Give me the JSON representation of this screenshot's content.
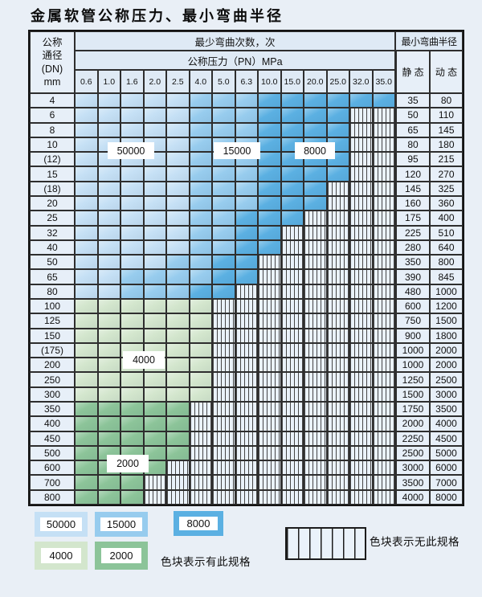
{
  "title": "金属软管公称压力、最小弯曲半径",
  "colors": {
    "page-bg": "#e9eff6",
    "grid-line": "#2e2e2e",
    "header-bg": "#dfeaf5",
    "label-bg": "#e7eff8",
    "hatch-bg": "#eaf2fa",
    "blue-50000": "#c5e0f5",
    "blue-15000": "#97ccee",
    "blue-8000": "#5bb0e2",
    "green-4000": "#d3e6cd",
    "green-2000": "#8cc499"
  },
  "header": {
    "dn_lines": [
      "公称",
      "通径",
      "(DN)",
      "mm"
    ],
    "bend_times_label": "最少弯曲次数，次",
    "pressure_label": "公称压力（PN）MPa",
    "pressure_values": [
      "0.6",
      "1.0",
      "1.6",
      "2.0",
      "2.5",
      "4.0",
      "5.0",
      "6.3",
      "10.0",
      "15.0",
      "20.0",
      "25.0",
      "32.0",
      "35.0"
    ],
    "radius_label": "最小弯曲半径",
    "static_label": "静 态",
    "dynamic_label": "动 态"
  },
  "shade_codes": {
    "L": "50000",
    "M": "15000",
    "D": "8000",
    "G": "4000",
    "H": "2000",
    "X": "无此规格"
  },
  "region_labels": {
    "r50000": "50000",
    "r15000": "15000",
    "r8000": "8000",
    "r4000": "4000",
    "r2000": "2000"
  },
  "rows": [
    {
      "dn": "4",
      "cells": "LLLLLMMMDDDDDD",
      "st": "35",
      "dy": "80"
    },
    {
      "dn": "6",
      "cells": "LLLLLMMMDDDDXX",
      "st": "50",
      "dy": "110"
    },
    {
      "dn": "8",
      "cells": "LLLLLMMMDDDDXX",
      "st": "65",
      "dy": "145"
    },
    {
      "dn": "10",
      "cells": "LLLLLMMMDDDDXX",
      "st": "80",
      "dy": "180"
    },
    {
      "dn": "(12)",
      "cells": "LLLLLMMMDDDDXX",
      "st": "95",
      "dy": "215"
    },
    {
      "dn": "15",
      "cells": "LLLLLMMMDDDDXX",
      "st": "120",
      "dy": "270"
    },
    {
      "dn": "(18)",
      "cells": "LLLLLMMMDDDXXX",
      "st": "145",
      "dy": "325"
    },
    {
      "dn": "20",
      "cells": "LLLLLMMMDDDXXX",
      "st": "160",
      "dy": "360"
    },
    {
      "dn": "25",
      "cells": "LLLLLMMDDDXXXX",
      "st": "175",
      "dy": "400"
    },
    {
      "dn": "32",
      "cells": "LLLLLMMDDXXXXX",
      "st": "225",
      "dy": "510"
    },
    {
      "dn": "40",
      "cells": "LLLLLMMDDXXXXX",
      "st": "280",
      "dy": "640"
    },
    {
      "dn": "50",
      "cells": "LLLLMMDDXXXXXX",
      "st": "350",
      "dy": "800"
    },
    {
      "dn": "65",
      "cells": "LLMMMMDDXXXXXX",
      "st": "390",
      "dy": "845"
    },
    {
      "dn": "80",
      "cells": "LLMMMDDXXXXXXX",
      "st": "480",
      "dy": "1000"
    },
    {
      "dn": "100",
      "cells": "GGGGGGXXXXXXXX",
      "st": "600",
      "dy": "1200"
    },
    {
      "dn": "125",
      "cells": "GGGGGGXXXXXXXX",
      "st": "750",
      "dy": "1500"
    },
    {
      "dn": "150",
      "cells": "GGGGGGXXXXXXXX",
      "st": "900",
      "dy": "1800"
    },
    {
      "dn": "(175)",
      "cells": "GGGGGGXXXXXXXX",
      "st": "1000",
      "dy": "2000"
    },
    {
      "dn": "200",
      "cells": "GGGGGGXXXXXXXX",
      "st": "1000",
      "dy": "2000"
    },
    {
      "dn": "250",
      "cells": "GGGGGGXXXXXXXX",
      "st": "1250",
      "dy": "2500"
    },
    {
      "dn": "300",
      "cells": "GGGGGGXXXXXXXX",
      "st": "1500",
      "dy": "3000"
    },
    {
      "dn": "350",
      "cells": "HHHHHXXXXXXXXX",
      "st": "1750",
      "dy": "3500"
    },
    {
      "dn": "400",
      "cells": "HHHHHXXXXXXXXX",
      "st": "2000",
      "dy": "4000"
    },
    {
      "dn": "450",
      "cells": "HHHHHXXXXXXXXX",
      "st": "2250",
      "dy": "4500"
    },
    {
      "dn": "500",
      "cells": "HHHHHXXXXXXXXX",
      "st": "2500",
      "dy": "5000"
    },
    {
      "dn": "600",
      "cells": "HHHHXXXXXXXXXX",
      "st": "3000",
      "dy": "6000"
    },
    {
      "dn": "700",
      "cells": "HHHXXXXXXXXXXX",
      "st": "3500",
      "dy": "7000"
    },
    {
      "dn": "800",
      "cells": "HHHXXXXXXXXXXX",
      "st": "4000",
      "dy": "8000"
    }
  ],
  "legend": {
    "items": [
      {
        "label": "50000",
        "color": "#c5e0f5"
      },
      {
        "label": "15000",
        "color": "#97ccee"
      },
      {
        "label": "8000",
        "color": "#5bb0e2"
      },
      {
        "label": "4000",
        "color": "#d3e6cd"
      },
      {
        "label": "2000",
        "color": "#8cc499"
      }
    ],
    "has_spec_note": "色块表示有此规格",
    "no_spec_note": "色块表示无此规格"
  }
}
